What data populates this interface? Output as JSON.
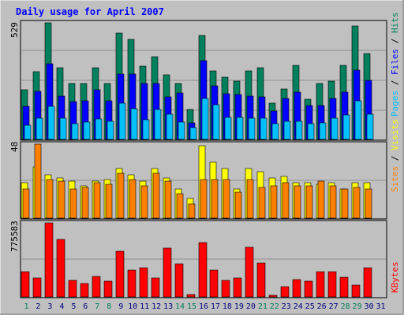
{
  "colors": {
    "background": "#c0c0c0",
    "title": "#0000ff",
    "hits": "#00805c",
    "files": "#0000ff",
    "pages": "#00c0ff",
    "visits": "#ffff00",
    "sites": "#ff8000",
    "kbytes": "#ff0000",
    "weekend_day": "#00805c",
    "weekday": "#000080"
  },
  "chart_data": [
    {
      "type": "bar",
      "title": "Daily usage for April 2007",
      "y_max_label": "529",
      "ylim": [
        0,
        529
      ],
      "x": [
        1,
        2,
        3,
        4,
        5,
        6,
        7,
        8,
        9,
        10,
        11,
        12,
        13,
        14,
        15,
        16,
        17,
        18,
        19,
        20,
        21,
        22,
        23,
        24,
        25,
        26,
        27,
        28,
        29,
        30,
        31
      ],
      "weekend_days": [
        1,
        7,
        8,
        14,
        15,
        21,
        22,
        28,
        29
      ],
      "legend": [
        "Pages",
        "Files",
        "Hits"
      ],
      "series": [
        {
          "name": "Hits",
          "values": [
            224,
            307,
            529,
            324,
            253,
            254,
            324,
            254,
            484,
            453,
            333,
            377,
            294,
            253,
            136,
            471,
            312,
            282,
            263,
            312,
            324,
            166,
            227,
            336,
            183,
            253,
            263,
            336,
            513,
            391,
            0
          ]
        },
        {
          "name": "Files",
          "values": [
            151,
            217,
            342,
            197,
            172,
            176,
            224,
            176,
            297,
            297,
            252,
            254,
            193,
            211,
            76,
            359,
            243,
            208,
            205,
            196,
            193,
            130,
            185,
            213,
            153,
            152,
            186,
            216,
            314,
            268,
            0
          ]
        },
        {
          "name": "Pages",
          "values": [
            64,
            97,
            151,
            97,
            72,
            78,
            93,
            82,
            164,
            138,
            89,
            136,
            115,
            79,
            52,
            185,
            158,
            99,
            101,
            97,
            98,
            71,
            82,
            81,
            72,
            75,
            95,
            112,
            175,
            113,
            0
          ]
        }
      ]
    },
    {
      "type": "bar",
      "y_max_label": "48",
      "ylim": [
        0,
        48
      ],
      "x": [
        1,
        2,
        3,
        4,
        5,
        6,
        7,
        8,
        9,
        10,
        11,
        12,
        13,
        14,
        15,
        16,
        17,
        18,
        19,
        20,
        21,
        22,
        23,
        24,
        25,
        26,
        27,
        28,
        29,
        30,
        31
      ],
      "legend": [
        "Sites",
        "Visits"
      ],
      "series": [
        {
          "name": "Visits",
          "values": [
            23,
            33,
            28,
            26,
            24,
            21,
            24,
            25,
            32,
            28,
            24,
            32,
            26,
            19,
            13,
            47,
            36,
            32,
            19,
            32,
            30,
            26,
            27,
            23,
            23,
            22,
            23,
            19,
            23,
            23,
            0
          ]
        },
        {
          "name": "Sites",
          "values": [
            19,
            48,
            25,
            24,
            19,
            20,
            23,
            22,
            29,
            25,
            21,
            29,
            24,
            16,
            9,
            25,
            25,
            25,
            17,
            25,
            20,
            21,
            23,
            21,
            21,
            24,
            21,
            19,
            20,
            19,
            0
          ]
        }
      ]
    },
    {
      "type": "bar",
      "y_max_label": "775583",
      "ylim": [
        0,
        775583
      ],
      "x": [
        1,
        2,
        3,
        4,
        5,
        6,
        7,
        8,
        9,
        10,
        11,
        12,
        13,
        14,
        15,
        16,
        17,
        18,
        19,
        20,
        21,
        22,
        23,
        24,
        25,
        26,
        27,
        28,
        29,
        30,
        31
      ],
      "legend": [
        "KBytes"
      ],
      "series": [
        {
          "name": "KBytes",
          "values": [
            264000,
            200000,
            775583,
            600000,
            173000,
            141000,
            218000,
            164000,
            482000,
            282000,
            307000,
            200000,
            510000,
            346000,
            27000,
            569000,
            282000,
            173000,
            200000,
            518000,
            355000,
            18000,
            109000,
            182000,
            164000,
            264000,
            264000,
            209000,
            127000,
            309000,
            0
          ]
        }
      ]
    }
  ]
}
